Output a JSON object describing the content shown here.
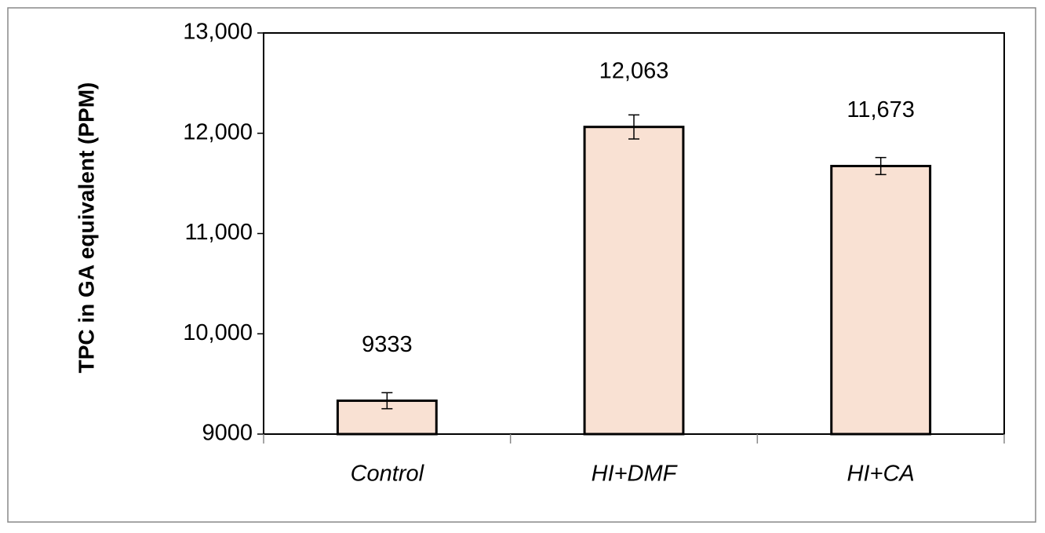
{
  "chart_data": {
    "type": "bar",
    "y_label": "TPC in GA equivalent (PPM)",
    "categories": [
      "Control",
      "HI+DMF",
      "HI+CA"
    ],
    "values": [
      9333,
      12063,
      11673
    ],
    "value_labels": [
      "9333",
      "12,063",
      "11,673"
    ],
    "errors": [
      80,
      120,
      85
    ],
    "color": "#f9e1d3",
    "ylim": [
      9000,
      13000
    ],
    "yticks": [
      9000,
      {
        "value": 10000,
        "label": "10,000"
      },
      {
        "value": 11000,
        "label": "11,000"
      },
      {
        "value": 12000,
        "label": "12,000"
      },
      {
        "value": 13000,
        "label": "13,000"
      }
    ],
    "grid": false
  }
}
